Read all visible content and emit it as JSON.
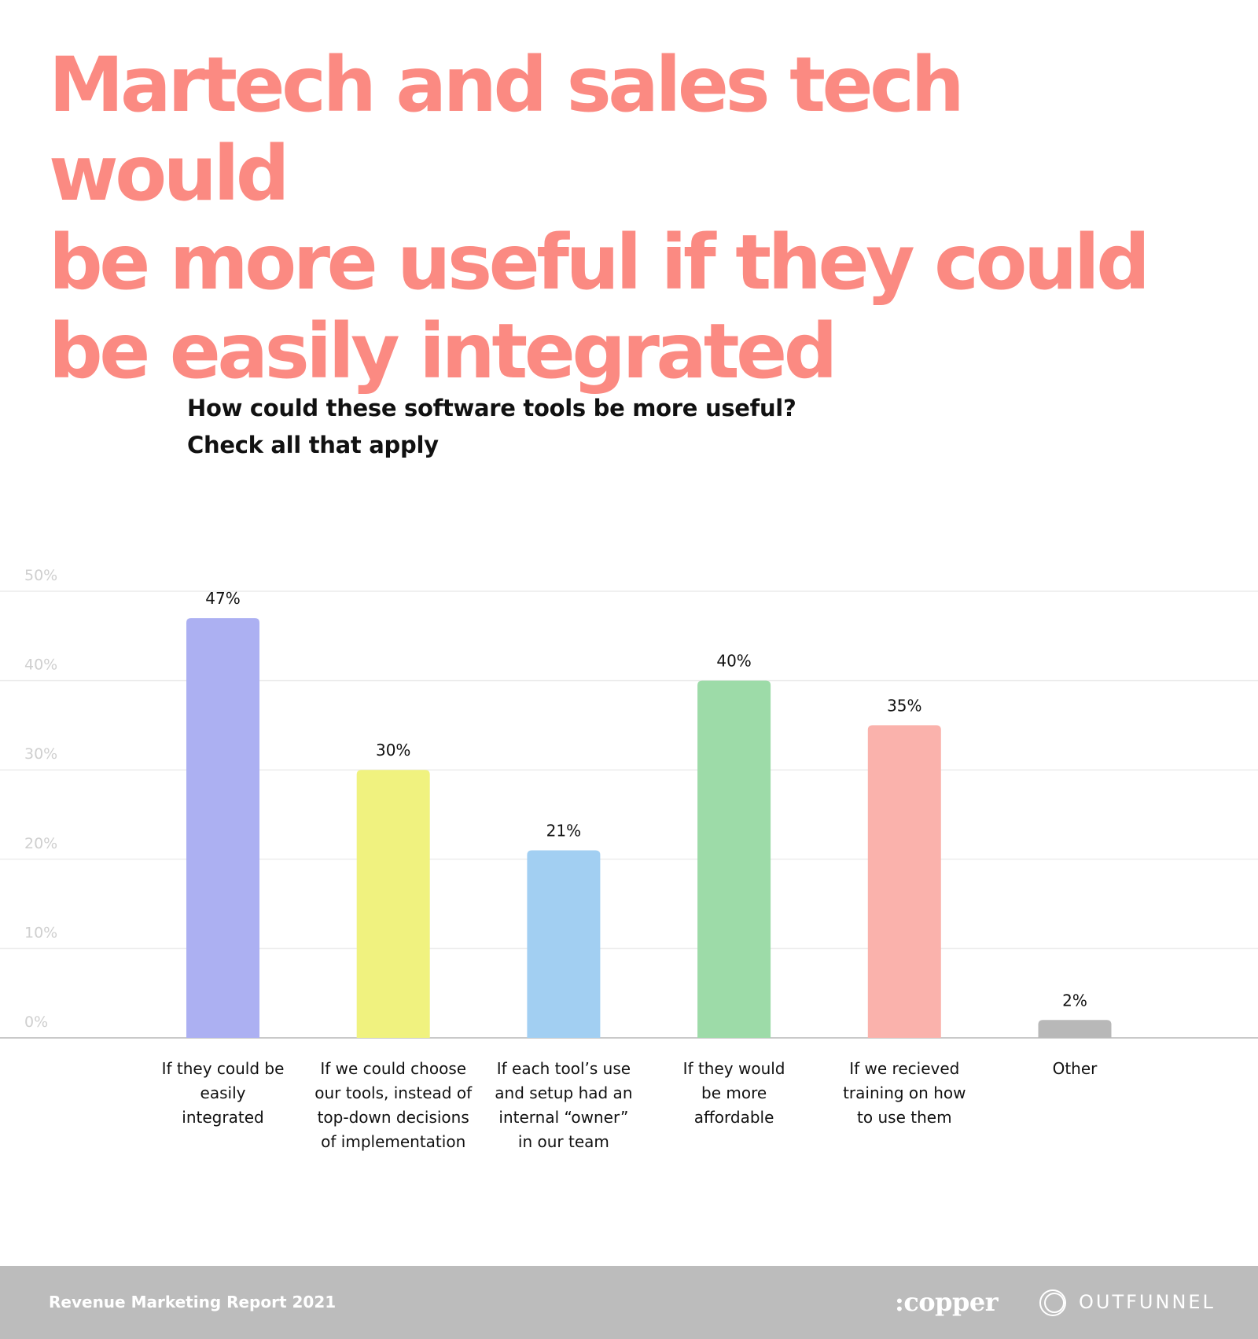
{
  "header": {
    "title_lines": [
      "Martech and sales tech would",
      "be more useful if they could",
      "be easily integrated"
    ],
    "title_color": "#fb8a82"
  },
  "chart_data": {
    "type": "bar",
    "title": "How could these software tools be more useful?",
    "subtitle": "Check all that apply",
    "categories": [
      [
        "If they could be",
        "easily",
        "integrated"
      ],
      [
        "If we could choose",
        "our tools, instead of",
        "top-down decisions",
        "of implementation"
      ],
      [
        "If each tool’s use",
        "and setup had an",
        "internal “owner”",
        "in our team"
      ],
      [
        "If they would",
        "be more",
        "affordable"
      ],
      [
        "If we recieved",
        "training on how",
        "to use them"
      ],
      [
        "Other"
      ]
    ],
    "values": [
      47,
      30,
      21,
      40,
      35,
      2
    ],
    "value_labels": [
      "47%",
      "30%",
      "21%",
      "40%",
      "35%",
      "2%"
    ],
    "colors": [
      "#acb0f2",
      "#f0f27f",
      "#a2cff2",
      "#9ddba8",
      "#fab2ac",
      "#b8b8b8"
    ],
    "yticks": [
      0,
      10,
      20,
      30,
      40,
      50
    ],
    "ytick_labels": [
      "0%",
      "10%",
      "20%",
      "30%",
      "40%",
      "50%"
    ],
    "ylim": [
      0,
      50
    ],
    "grid": true,
    "legend": "none"
  },
  "footer": {
    "report_label": "Revenue Marketing Report 2021",
    "copper_logo": ":copper",
    "outfunnel_logo": "OUTFUNNEL",
    "background": "#bcbcbc"
  }
}
